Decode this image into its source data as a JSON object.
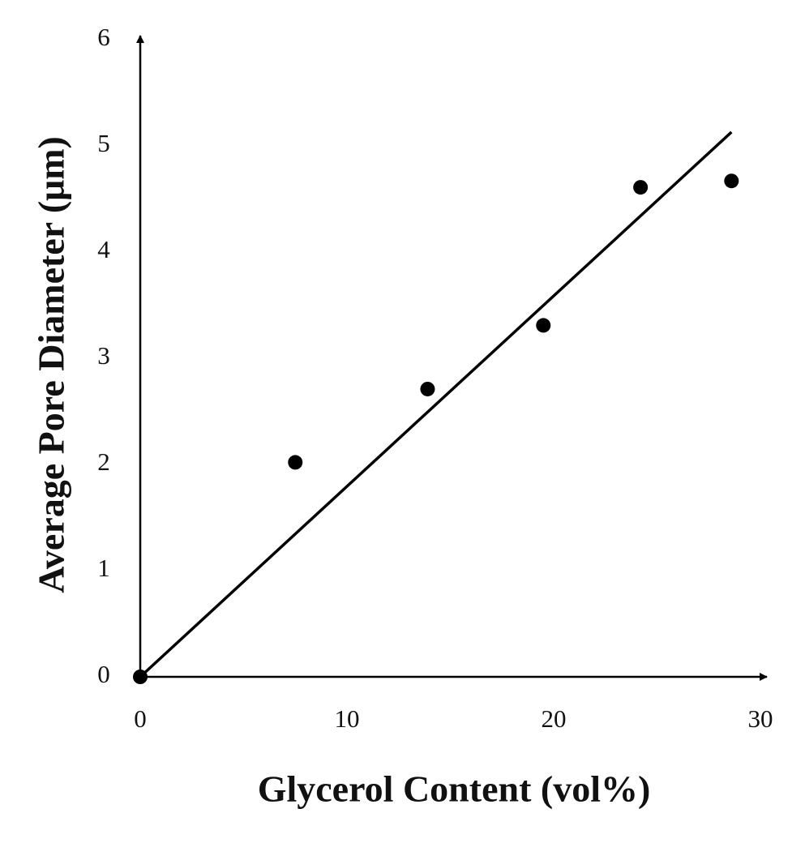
{
  "chart_data": {
    "type": "scatter",
    "x_label": "Glycerol Content (vol%)",
    "y_label": "Average Pore Diameter (μm)",
    "x": [
      0,
      7.5,
      13.9,
      19.5,
      24.2,
      28.6
    ],
    "values": [
      0,
      2.02,
      2.71,
      3.31,
      4.61,
      4.67
    ],
    "color": "#000000",
    "trendline": {
      "x": [
        0,
        28.6
      ],
      "values": [
        0,
        5.13
      ],
      "color": "#000000"
    },
    "xlim": [
      0,
      30
    ],
    "xticks": [
      0,
      10,
      20,
      30
    ],
    "ylim": [
      0,
      6
    ],
    "yticks": [
      0,
      1,
      2,
      3,
      4,
      5,
      6
    ]
  }
}
